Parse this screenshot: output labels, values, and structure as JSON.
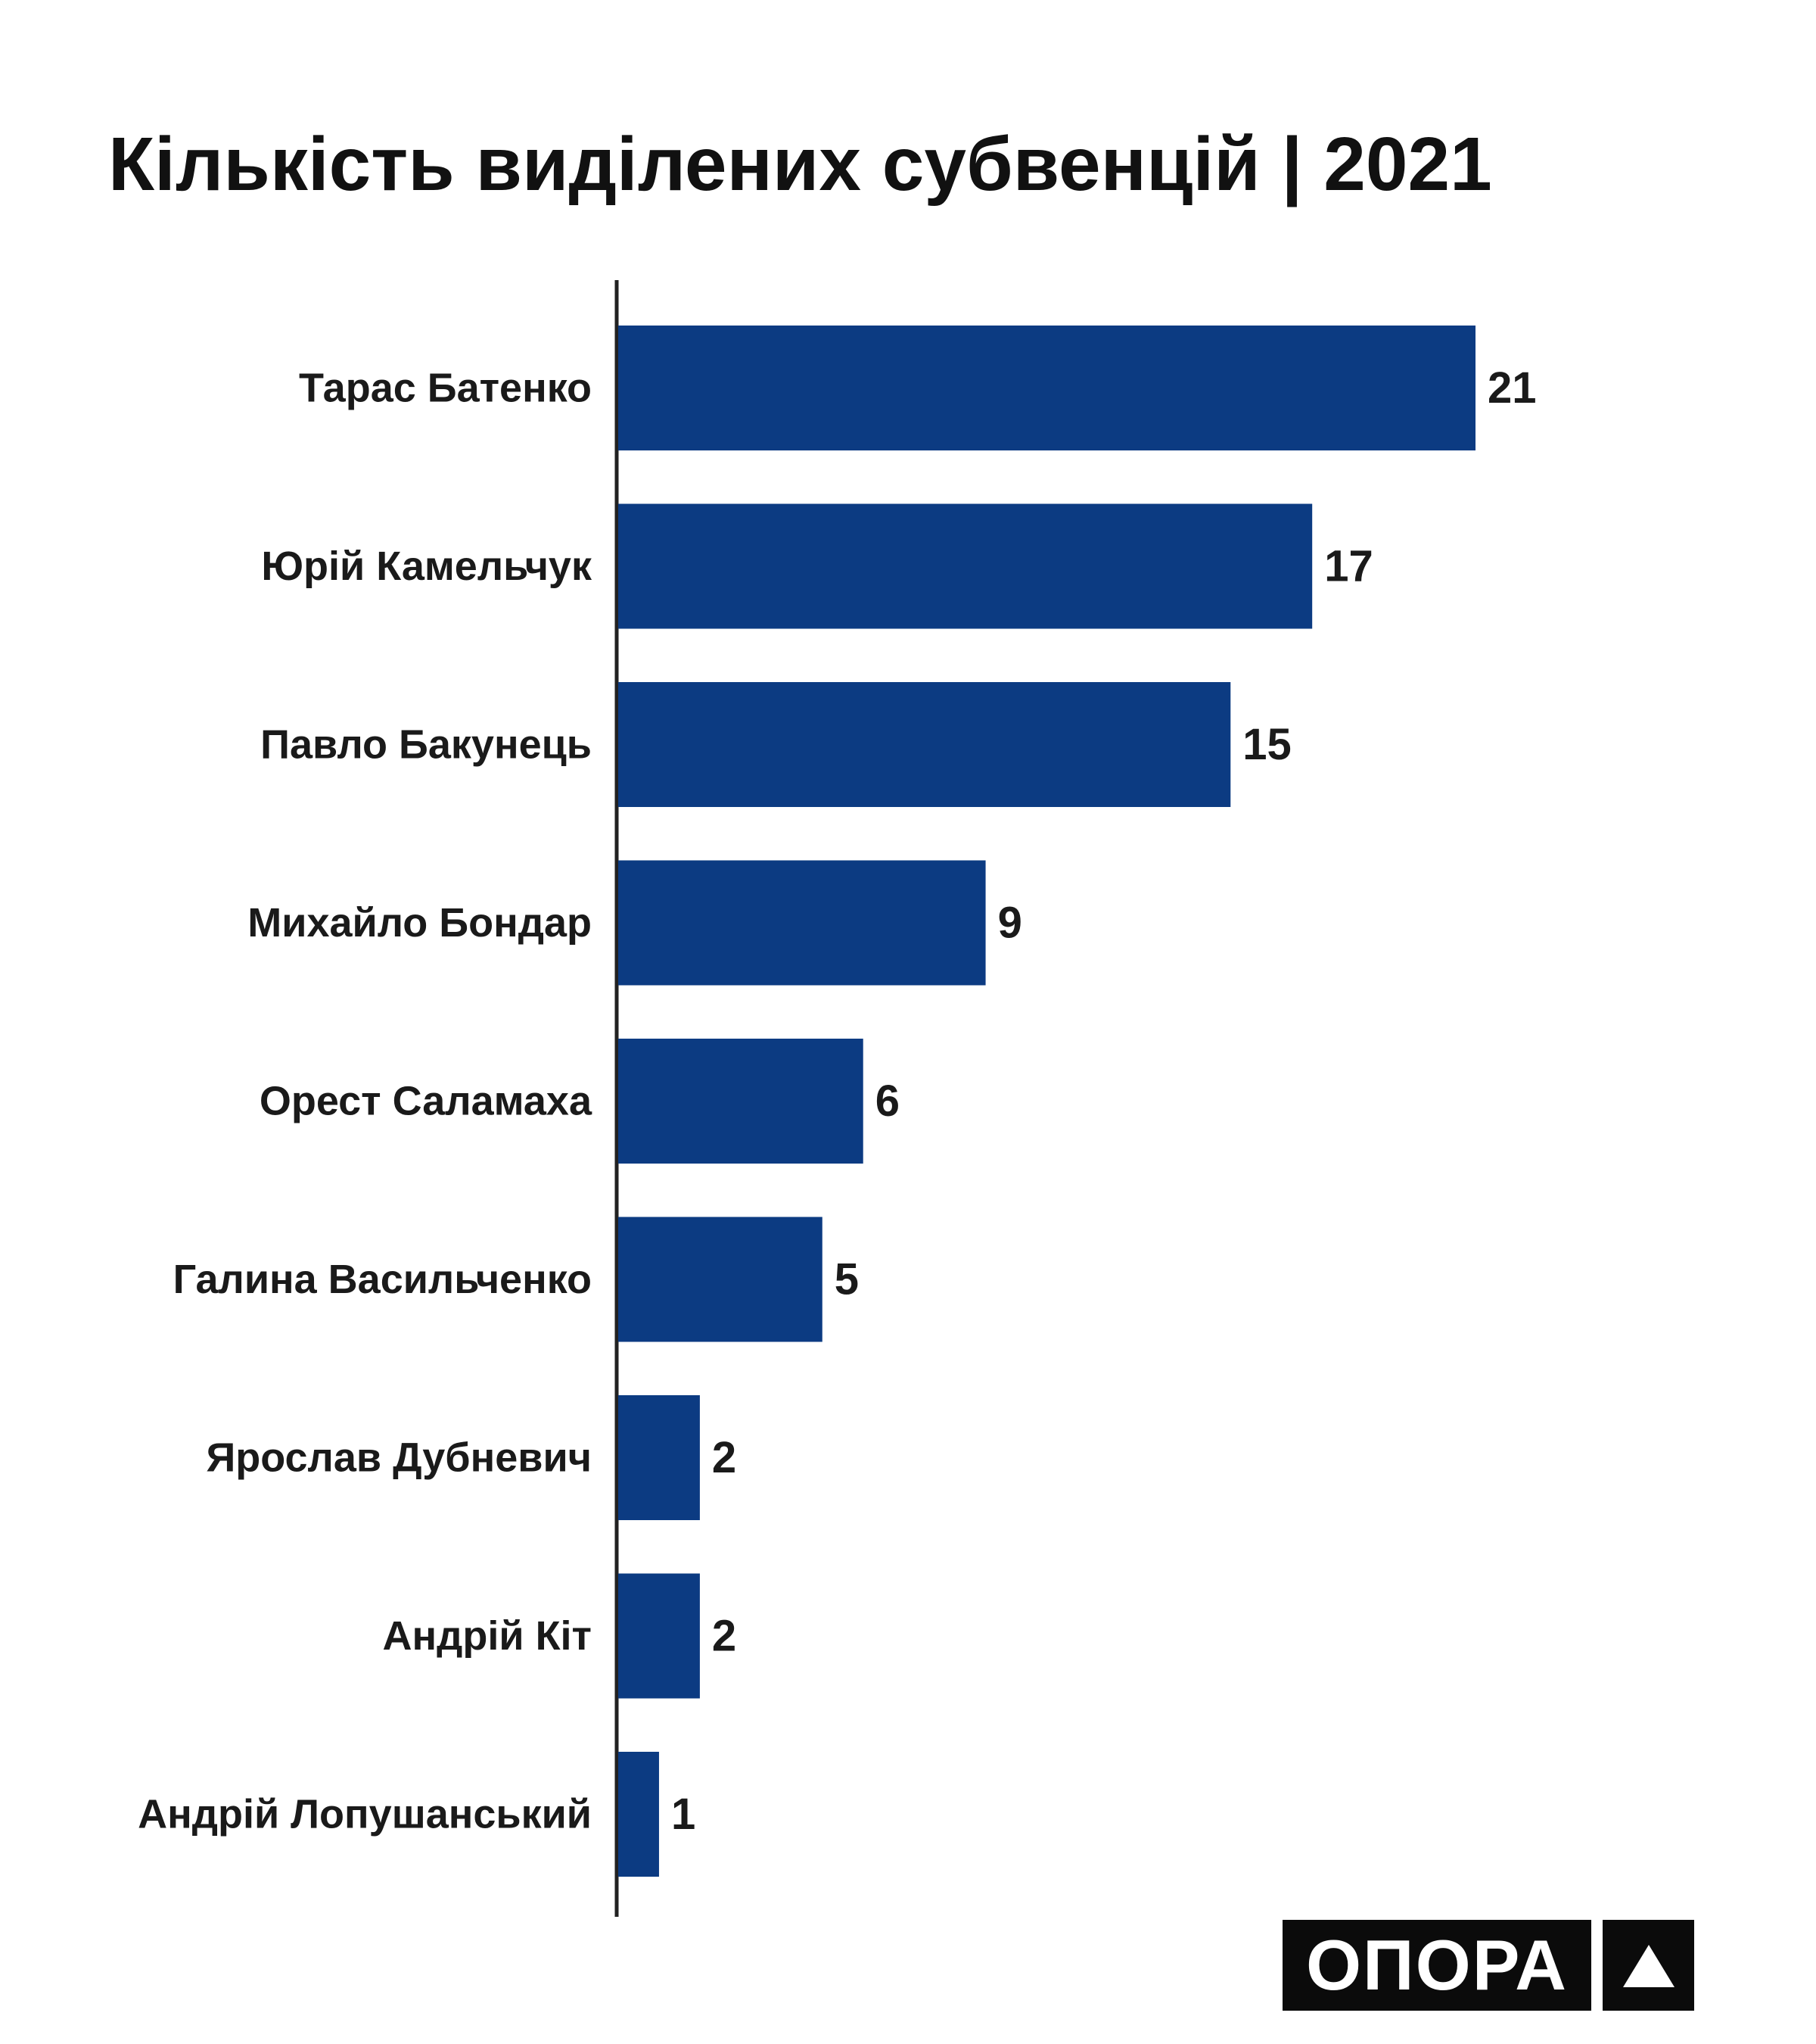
{
  "chart_data": {
    "type": "bar",
    "orientation": "horizontal",
    "title": "Кількість виділених субвенцій | 2021",
    "categories": [
      "Тарас Батенко",
      "Юрій Камельчук",
      "Павло Бакунець",
      "Михайло Бондар",
      "Орест Саламаха",
      "Галина Васильченко",
      "Ярослав Дубневич",
      "Андрій Кіт",
      "Андрій Лопушанський"
    ],
    "values": [
      21,
      17,
      15,
      9,
      6,
      5,
      2,
      2,
      1
    ],
    "xlim": [
      0,
      21
    ],
    "grid": false,
    "legend": "none",
    "data_labels": true,
    "bar_color": "#0c3b82",
    "axis_color": "#222222"
  },
  "logo": {
    "wordmark": "ОПОРА",
    "mark": "triangle-icon"
  }
}
